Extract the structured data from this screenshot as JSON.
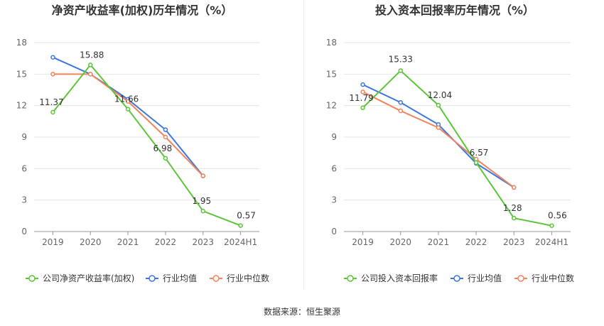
{
  "charts": [
    {
      "type": "line",
      "title": "净资产收益率(加权)历年情况（%）",
      "categories": [
        "2019",
        "2020",
        "2021",
        "2022",
        "2023",
        "2024H1"
      ],
      "ylim": [
        0,
        18
      ],
      "yticks": [
        0,
        3,
        6,
        9,
        12,
        15,
        18
      ],
      "series": [
        {
          "name": "公司净资产收益率(加权)",
          "color": "#5cc53a",
          "values": [
            11.37,
            15.88,
            11.66,
            6.98,
            1.95,
            0.57
          ],
          "labels": [
            "11.37",
            "15.88",
            "11.66",
            "6.98",
            "1.95",
            "0.57"
          ]
        },
        {
          "name": "行业均值",
          "color": "#3d76dd",
          "values": [
            16.6,
            15.0,
            12.6,
            9.7,
            5.3,
            null
          ]
        },
        {
          "name": "行业中位数",
          "color": "#f0845d",
          "values": [
            15.0,
            15.0,
            12.4,
            9.0,
            5.3,
            null
          ]
        }
      ]
    },
    {
      "type": "line",
      "title": "投入资本回报率历年情况（%）",
      "categories": [
        "2019",
        "2020",
        "2021",
        "2022",
        "2023",
        "2024H1"
      ],
      "ylim": [
        0,
        18
      ],
      "yticks": [
        0,
        3,
        6,
        9,
        12,
        15,
        18
      ],
      "series": [
        {
          "name": "公司投入资本回报率",
          "color": "#5cc53a",
          "values": [
            11.79,
            15.33,
            12.04,
            6.57,
            1.28,
            0.56
          ],
          "labels": [
            "11.79",
            "15.33",
            "12.04",
            "6.57",
            "1.28",
            "0.56"
          ]
        },
        {
          "name": "行业均值",
          "color": "#3d76dd",
          "values": [
            14.0,
            12.3,
            10.2,
            6.5,
            4.2,
            null
          ]
        },
        {
          "name": "行业中位数",
          "color": "#f0845d",
          "values": [
            13.3,
            11.5,
            9.9,
            6.9,
            4.2,
            null
          ]
        }
      ]
    }
  ],
  "source": "数据来源：恒生聚源"
}
